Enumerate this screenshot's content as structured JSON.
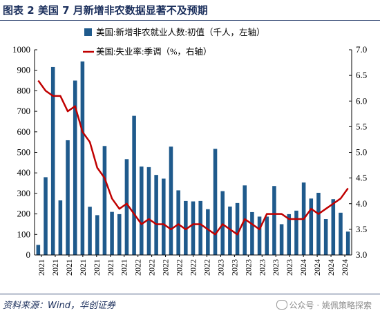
{
  "header": {
    "title": "图表 2   美国 7 月新增非农数据显著不及预期"
  },
  "footer": {
    "source": "资料来源：Wind，华创证券",
    "watermark": "公众号 · 姚佩策略探索"
  },
  "chart_data": {
    "type": "bar+line",
    "categories": [
      "2021-01",
      "2021-02",
      "2021-03",
      "2021-04",
      "2021-05",
      "2021-06",
      "2021-07",
      "2021-08",
      "2021-09",
      "2021-10",
      "2021-11",
      "2021-12",
      "2022-01",
      "2022-02",
      "2022-03",
      "2022-04",
      "2022-05",
      "2022-06",
      "2022-07",
      "2022-08",
      "2022-09",
      "2022-10",
      "2022-11",
      "2022-12",
      "2023-01",
      "2023-02",
      "2023-03",
      "2023-04",
      "2023-05",
      "2023-06",
      "2023-07",
      "2023-08",
      "2023-09",
      "2023-10",
      "2023-11",
      "2023-12",
      "2024-01",
      "2024-02",
      "2024-03",
      "2024-04",
      "2024-05",
      "2024-06",
      "2024-07"
    ],
    "x_tick_labels": [
      "2021",
      "2021",
      "2021",
      "2021",
      "2021",
      "2021",
      "2021",
      "2022",
      "2022",
      "2022",
      "2022",
      "2022",
      "2022",
      "2023",
      "2023",
      "2023",
      "2023",
      "2023",
      "2023",
      "2024",
      "2024",
      "2024",
      "2024"
    ],
    "series": [
      {
        "name": "美国:新增非农就业人数:初值（千人，左轴）",
        "type": "bar",
        "axis": "left",
        "color": "#1f5a8c",
        "values": [
          49,
          379,
          916,
          266,
          559,
          850,
          943,
          235,
          194,
          531,
          210,
          199,
          467,
          678,
          431,
          428,
          390,
          372,
          528,
          315,
          263,
          261,
          263,
          223,
          517,
          311,
          236,
          253,
          339,
          209,
          187,
          187,
          336,
          150,
          199,
          216,
          353,
          275,
          303,
          175,
          272,
          206,
          114
        ]
      },
      {
        "name": "美国:失业率:季调（%，右轴）",
        "type": "line",
        "axis": "right",
        "color": "#c00000",
        "values": [
          6.4,
          6.2,
          6.1,
          6.1,
          5.8,
          5.9,
          5.4,
          5.2,
          4.7,
          4.5,
          4.1,
          3.9,
          4.0,
          3.8,
          3.6,
          3.7,
          3.6,
          3.6,
          3.5,
          3.6,
          3.5,
          3.6,
          3.6,
          3.5,
          3.4,
          3.6,
          3.5,
          3.4,
          3.7,
          3.6,
          3.5,
          3.8,
          3.8,
          3.8,
          3.7,
          3.7,
          3.7,
          3.9,
          3.8,
          3.9,
          4.0,
          4.1,
          4.3
        ]
      }
    ],
    "y_left": {
      "min": 0,
      "max": 1000,
      "ticks": [
        "0",
        "100",
        "200",
        "300",
        "400",
        "500",
        "600",
        "700",
        "800",
        "900",
        "1000"
      ]
    },
    "y_right": {
      "min": 3.0,
      "max": 7.0,
      "ticks": [
        "3.0",
        "3.5",
        "4.0",
        "4.5",
        "5.0",
        "5.5",
        "6.0",
        "6.5",
        "7.0"
      ]
    },
    "legend_position": "top-center",
    "grid": false
  }
}
